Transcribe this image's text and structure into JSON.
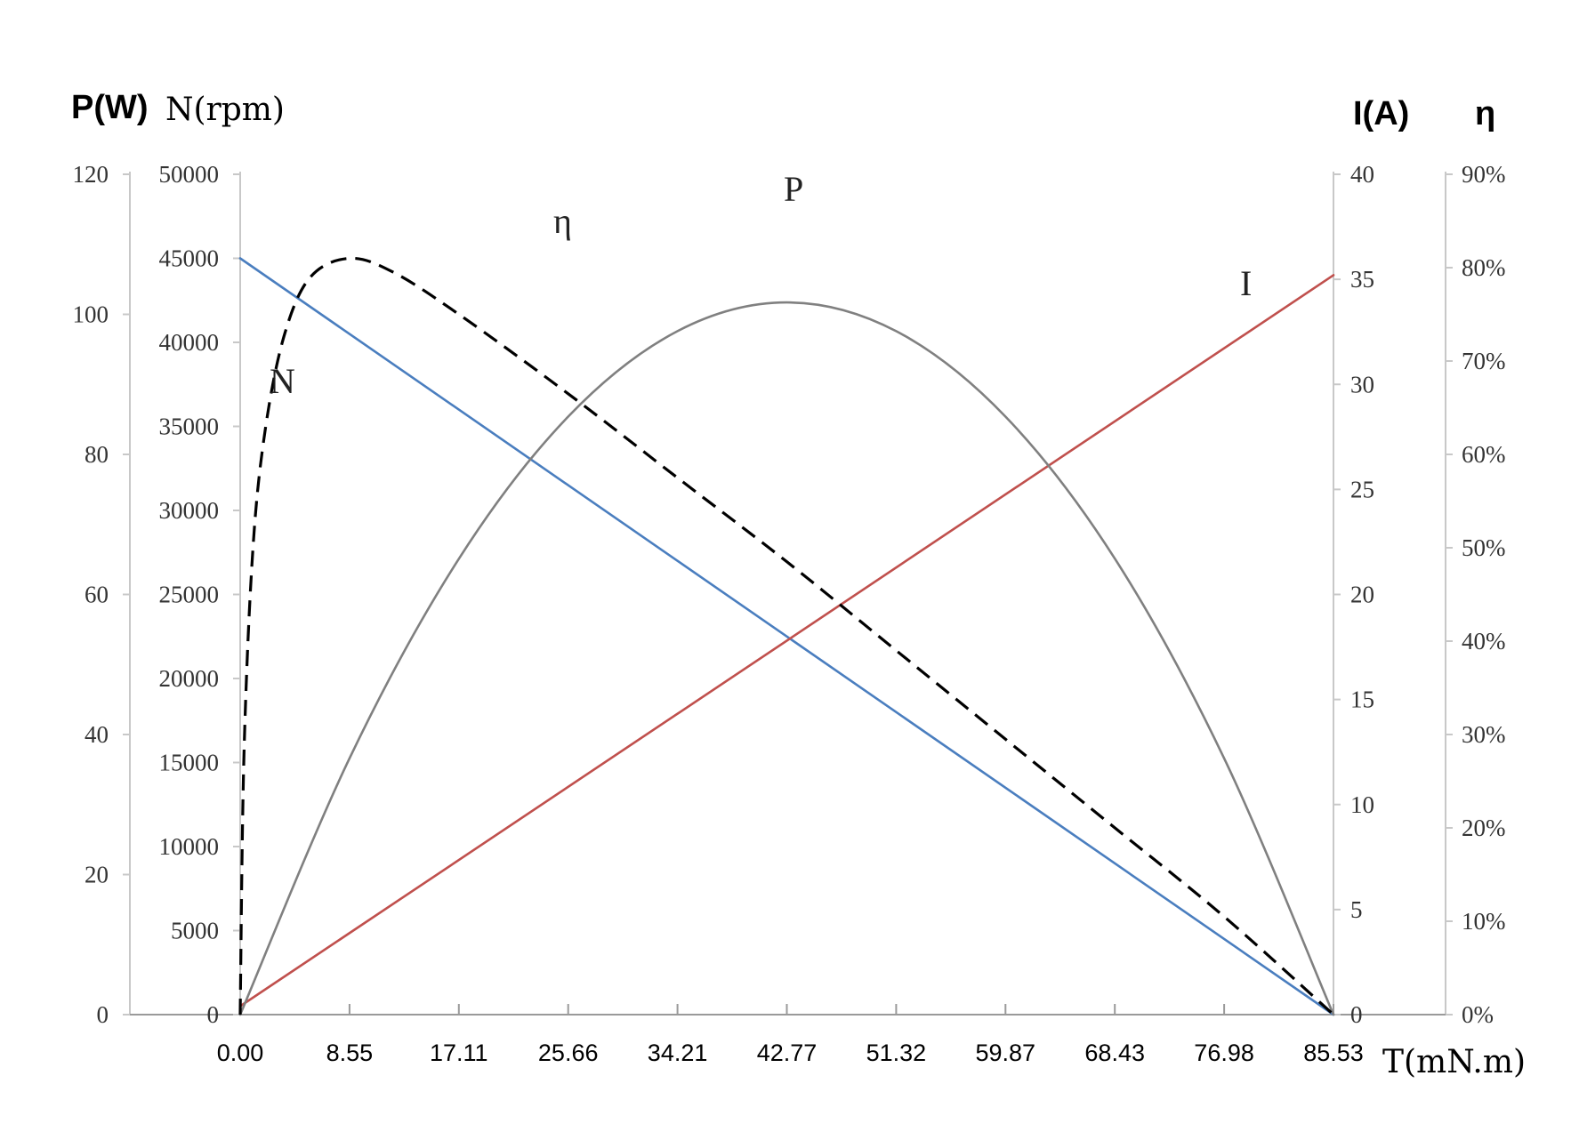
{
  "chart_data": {
    "type": "line",
    "xlabel": "T(mN.m)",
    "x_ticks": [
      "0.00",
      "8.55",
      "17.11",
      "25.66",
      "34.21",
      "42.77",
      "51.32",
      "59.87",
      "68.43",
      "76.98",
      "85.53"
    ],
    "xlim": [
      0,
      85.53
    ],
    "axes": {
      "P": {
        "label": "P(W)",
        "side": "left-outer",
        "ylim": [
          0,
          120
        ],
        "ticks": [
          "0",
          "20",
          "40",
          "60",
          "80",
          "100",
          "120"
        ]
      },
      "N": {
        "label": "N(rpm)",
        "side": "left-inner",
        "ylim": [
          0,
          50000
        ],
        "ticks": [
          "0",
          "5000",
          "10000",
          "15000",
          "20000",
          "25000",
          "30000",
          "35000",
          "40000",
          "45000",
          "50000"
        ]
      },
      "I": {
        "label": "I(A)",
        "side": "right-inner",
        "ylim": [
          0,
          40
        ],
        "ticks": [
          "0",
          "5",
          "10",
          "15",
          "20",
          "25",
          "30",
          "35",
          "40"
        ]
      },
      "eta": {
        "label": "η",
        "side": "right-outer",
        "ylim": [
          0,
          0.9
        ],
        "ticks": [
          "0%",
          "10%",
          "20%",
          "30%",
          "40%",
          "50%",
          "60%",
          "70%",
          "80%",
          "90%"
        ]
      }
    },
    "series": [
      {
        "name": "N",
        "axis": "N",
        "color": "#4a7ebf",
        "style": "solid",
        "points": [
          [
            0,
            45000
          ],
          [
            85.53,
            0
          ]
        ]
      },
      {
        "name": "I",
        "axis": "I",
        "color": "#c0504d",
        "style": "solid",
        "points": [
          [
            0,
            0.4
          ],
          [
            85.53,
            35.2
          ]
        ]
      },
      {
        "name": "P",
        "axis": "P",
        "color": "#808080",
        "style": "solid",
        "points": [
          [
            0,
            0
          ],
          [
            8.55,
            36.6
          ],
          [
            17.11,
            65.1
          ],
          [
            25.66,
            85.4
          ],
          [
            34.21,
            97.6
          ],
          [
            42.77,
            101.7
          ],
          [
            51.32,
            97.6
          ],
          [
            59.87,
            85.4
          ],
          [
            68.43,
            65.1
          ],
          [
            76.98,
            36.6
          ],
          [
            85.53,
            0
          ]
        ]
      },
      {
        "name": "η",
        "axis": "eta",
        "color": "#000000",
        "style": "dashed",
        "points": [
          [
            0,
            0
          ],
          [
            0.3,
            0.28
          ],
          [
            1.0,
            0.5
          ],
          [
            2.0,
            0.63
          ],
          [
            3.5,
            0.73
          ],
          [
            5.5,
            0.79
          ],
          [
            8.55,
            0.81
          ],
          [
            12.0,
            0.795
          ],
          [
            17.11,
            0.75
          ],
          [
            25.66,
            0.665
          ],
          [
            34.21,
            0.575
          ],
          [
            42.77,
            0.485
          ],
          [
            51.32,
            0.39
          ],
          [
            59.87,
            0.295
          ],
          [
            68.43,
            0.2
          ],
          [
            76.98,
            0.105
          ],
          [
            85.53,
            0
          ]
        ]
      }
    ],
    "annotations": [
      "η",
      "P",
      "I",
      "N"
    ],
    "grid": false,
    "legend": "none"
  }
}
